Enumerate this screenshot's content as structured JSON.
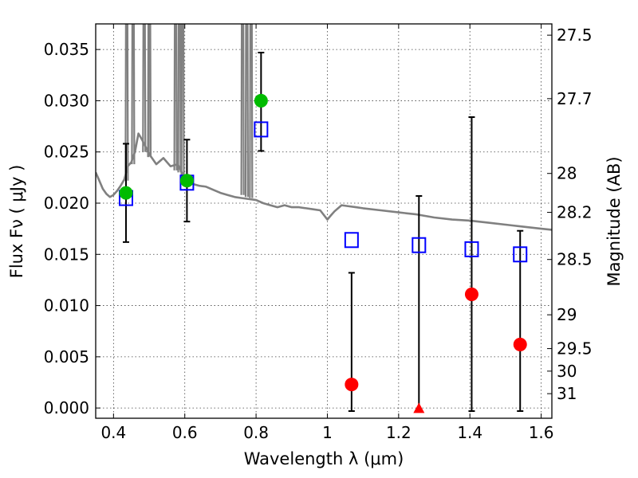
{
  "chart_data": {
    "type": "scatter",
    "title": "",
    "xlabel": "Wavelength  λ (μm)",
    "ylabel": "Flux  Fν  ( μJy )",
    "ylabel_right": "Magnitude (AB)",
    "xlim": [
      0.35,
      1.63
    ],
    "ylim": [
      -0.001,
      0.0375
    ],
    "grid": true,
    "x_ticks": [
      0.4,
      0.6,
      0.8,
      1.0,
      1.2,
      1.4,
      1.6
    ],
    "x_tick_labels": [
      "0.4",
      "0.6",
      "0.8",
      "1",
      "1.2",
      "1.4",
      "1.6"
    ],
    "y_ticks": [
      0.0,
      0.005,
      0.01,
      0.015,
      0.02,
      0.025,
      0.03,
      0.035
    ],
    "y_tick_labels": [
      "0.000",
      "0.005",
      "0.010",
      "0.015",
      "0.020",
      "0.025",
      "0.030",
      "0.035"
    ],
    "right_ticks": [
      {
        "label": "27.5",
        "flux": 0.0364
      },
      {
        "label": "27.7",
        "flux": 0.0302
      },
      {
        "label": "28",
        "flux": 0.0229
      },
      {
        "label": "28.2",
        "flux": 0.0191
      },
      {
        "label": "28.5",
        "flux": 0.0145
      },
      {
        "label": "29",
        "flux": 0.0091
      },
      {
        "label": "29.5",
        "flux": 0.0058
      },
      {
        "label": "30",
        "flux": 0.0036
      },
      {
        "label": "31",
        "flux": 0.0014
      }
    ],
    "series": [
      {
        "kind": "model",
        "color": "#808080",
        "x": [
          0.35,
          0.36,
          0.37,
          0.38,
          0.39,
          0.4,
          0.41,
          0.42,
          0.43,
          0.44,
          0.45,
          0.46,
          0.47,
          0.48,
          0.49,
          0.5,
          0.52,
          0.54,
          0.56,
          0.58,
          0.6,
          0.62,
          0.64,
          0.66,
          0.68,
          0.7,
          0.72,
          0.74,
          0.76,
          0.78,
          0.8,
          0.82,
          0.84,
          0.86,
          0.88,
          0.9,
          0.92,
          0.94,
          0.96,
          0.98,
          1.0,
          1.01,
          1.02,
          1.04,
          1.06,
          1.08,
          1.1,
          1.15,
          1.2,
          1.25,
          1.3,
          1.35,
          1.4,
          1.45,
          1.5,
          1.55,
          1.6,
          1.63
        ],
        "y": [
          0.023,
          0.0222,
          0.0214,
          0.0209,
          0.0206,
          0.0208,
          0.0212,
          0.0217,
          0.0223,
          0.0236,
          0.024,
          0.025,
          0.0268,
          0.0262,
          0.0255,
          0.0248,
          0.0238,
          0.0244,
          0.0236,
          0.0238,
          0.0224,
          0.0219,
          0.0217,
          0.0216,
          0.0213,
          0.021,
          0.0208,
          0.0206,
          0.0205,
          0.0204,
          0.0203,
          0.02,
          0.0198,
          0.0196,
          0.0198,
          0.0196,
          0.0196,
          0.0195,
          0.0194,
          0.0193,
          0.0184,
          0.0188,
          0.0192,
          0.0198,
          0.0197,
          0.0196,
          0.0195,
          0.0193,
          0.0191,
          0.0189,
          0.0186,
          0.0184,
          0.0183,
          0.0181,
          0.0179,
          0.0177,
          0.0175,
          0.0174
        ],
        "spikes": [
          {
            "x": 0.437,
            "base": 0.0222,
            "top": 0.0375
          },
          {
            "x": 0.455,
            "base": 0.0238,
            "top": 0.0375
          },
          {
            "x": 0.486,
            "base": 0.025,
            "top": 0.0375
          },
          {
            "x": 0.501,
            "base": 0.0245,
            "top": 0.0375
          },
          {
            "x": 0.5,
            "base": 0.0245,
            "top": 0.0375
          },
          {
            "x": 0.574,
            "base": 0.0232,
            "top": 0.0375
          },
          {
            "x": 0.585,
            "base": 0.023,
            "top": 0.0375
          },
          {
            "x": 0.594,
            "base": 0.0226,
            "top": 0.0375
          },
          {
            "x": 0.762,
            "base": 0.0208,
            "top": 0.0375
          },
          {
            "x": 0.774,
            "base": 0.0206,
            "top": 0.0375
          },
          {
            "x": 0.786,
            "base": 0.0205,
            "top": 0.0375
          }
        ]
      },
      {
        "kind": "model_photometry",
        "marker": "open-square",
        "color": "#0000ff",
        "points": [
          {
            "x": 0.435,
            "y": 0.0205
          },
          {
            "x": 0.606,
            "y": 0.022
          },
          {
            "x": 0.814,
            "y": 0.0272
          },
          {
            "x": 1.068,
            "y": 0.0164
          },
          {
            "x": 1.257,
            "y": 0.0159
          },
          {
            "x": 1.405,
            "y": 0.0155
          },
          {
            "x": 1.541,
            "y": 0.015
          }
        ]
      },
      {
        "kind": "detections",
        "marker": "circle",
        "color": "#00bb00",
        "points": [
          {
            "x": 0.435,
            "y": 0.021,
            "lo": 0.0162,
            "hi": 0.0258
          },
          {
            "x": 0.606,
            "y": 0.0222,
            "lo": 0.0182,
            "hi": 0.0262
          },
          {
            "x": 0.814,
            "y": 0.03,
            "lo": 0.0251,
            "hi": 0.0347
          }
        ]
      },
      {
        "kind": "non_detections",
        "marker": "circle",
        "color": "#ff0000",
        "points": [
          {
            "x": 1.068,
            "y": 0.0023,
            "lo": -0.0003,
            "hi": 0.0132
          },
          {
            "x": 1.405,
            "y": 0.0111,
            "lo": -0.0003,
            "hi": 0.0284
          },
          {
            "x": 1.541,
            "y": 0.0062,
            "lo": -0.0003,
            "hi": 0.0173
          }
        ]
      },
      {
        "kind": "upper_limit",
        "marker": "triangle",
        "color": "#ff0000",
        "points": [
          {
            "x": 1.257,
            "y": -0.0001,
            "lo": -0.0003,
            "hi": 0.0207
          }
        ]
      }
    ]
  }
}
